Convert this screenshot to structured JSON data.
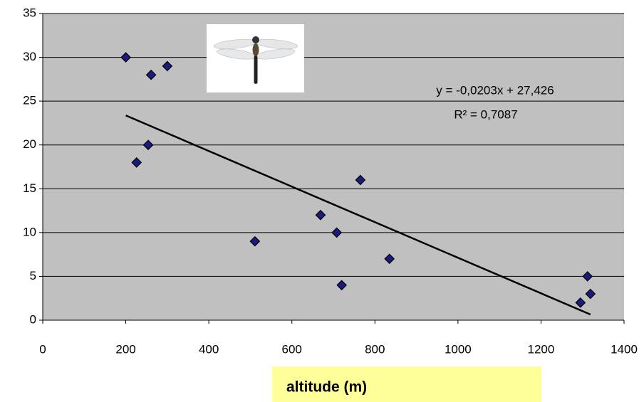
{
  "chart_data": {
    "type": "scatter",
    "x_label": "altitude (m)",
    "series": [
      {
        "color": "#1a1a80",
        "x": [
          200,
          226,
          261,
          254,
          300,
          511,
          669,
          708,
          720,
          765,
          835,
          1295,
          1312,
          1319
        ],
        "values": [
          30,
          18,
          28,
          20,
          29,
          9,
          12,
          10,
          4,
          16,
          7,
          2,
          5,
          3
        ]
      }
    ],
    "trendline": {
      "equation": "y = -0,0203x + 27,426",
      "r_squared_label": "R² = 0,7087",
      "slope": -0.0203,
      "intercept": 27.426
    },
    "xlim": [
      0,
      1400
    ],
    "xticks": [
      0,
      200,
      400,
      600,
      800,
      1000,
      1200,
      1400
    ],
    "ylim": [
      0,
      35
    ],
    "yticks": [
      0,
      5,
      10,
      15,
      20,
      25,
      30,
      35
    ],
    "grid": true
  }
}
